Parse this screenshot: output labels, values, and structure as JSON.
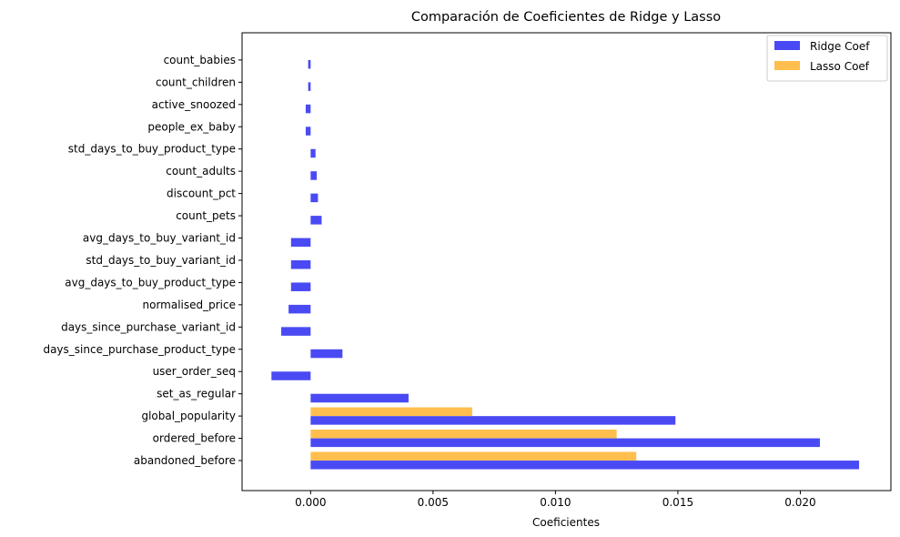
{
  "chart_data": {
    "type": "bar",
    "orientation": "horizontal",
    "title": "Comparación de Coeficientes de Ridge y Lasso",
    "xlabel": "Coeficientes",
    "ylabel": "",
    "xlim": [
      -0.0028,
      0.0237
    ],
    "xticks": [
      0.0,
      0.005,
      0.01,
      0.015,
      0.02
    ],
    "xtick_labels": [
      "0.000",
      "0.005",
      "0.010",
      "0.015",
      "0.020"
    ],
    "grid": false,
    "legend_position": "top-right",
    "categories": [
      "abandoned_before",
      "ordered_before",
      "global_popularity",
      "set_as_regular",
      "user_order_seq",
      "days_since_purchase_product_type",
      "days_since_purchase_variant_id",
      "normalised_price",
      "avg_days_to_buy_product_type",
      "std_days_to_buy_variant_id",
      "avg_days_to_buy_variant_id",
      "count_pets",
      "discount_pct",
      "count_adults",
      "std_days_to_buy_product_type",
      "people_ex_baby",
      "active_snoozed",
      "count_children",
      "count_babies"
    ],
    "series": [
      {
        "name": "Ridge Coef",
        "color": "#4a4af4",
        "values": [
          0.0224,
          0.0208,
          0.0149,
          0.004,
          -0.0016,
          0.0013,
          -0.0012,
          -0.0009,
          -0.0008,
          -0.0008,
          -0.0008,
          0.00045,
          0.0003,
          0.00025,
          0.0002,
          -0.0002,
          -0.0002,
          -0.0001,
          -0.0001
        ]
      },
      {
        "name": "Lasso Coef",
        "color": "#ffbe4d",
        "values": [
          0.0133,
          0.0125,
          0.0066,
          0.0,
          0.0,
          0.0,
          0.0,
          0.0,
          0.0,
          0.0,
          0.0,
          0.0,
          0.0,
          0.0,
          0.0,
          0.0,
          0.0,
          0.0,
          0.0
        ]
      }
    ]
  }
}
